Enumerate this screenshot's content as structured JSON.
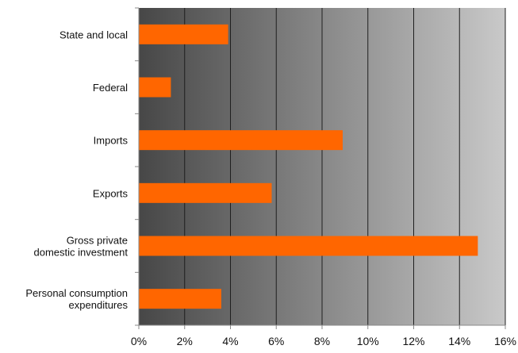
{
  "chart_data": {
    "type": "bar",
    "orientation": "horizontal",
    "categories": [
      [
        "State and local"
      ],
      [
        "Federal"
      ],
      [
        "Imports"
      ],
      [
        "Exports"
      ],
      [
        "Gross private",
        "domestic investment"
      ],
      [
        "Personal consumption",
        "expenditures"
      ]
    ],
    "values": [
      3.9,
      1.4,
      8.9,
      5.8,
      14.8,
      3.6
    ],
    "xlim": [
      0,
      16
    ],
    "ticks": [
      {
        "value": 0,
        "label": "0%"
      },
      {
        "value": 2,
        "label": "2%"
      },
      {
        "value": 4,
        "label": "4%"
      },
      {
        "value": 6,
        "label": "6%"
      },
      {
        "value": 8,
        "label": "8%"
      },
      {
        "value": 10,
        "label": "10%"
      },
      {
        "value": 12,
        "label": "12%"
      },
      {
        "value": 14,
        "label": "14%"
      },
      {
        "value": 16,
        "label": "16%"
      }
    ],
    "grid": true,
    "legend": "none",
    "colors": {
      "bar": "#ff6600",
      "plot_gradient_start": "#474747",
      "plot_gradient_end": "#c9c9c9",
      "gridline": "#1f1f1f",
      "axis": "#8a8a8a"
    }
  }
}
